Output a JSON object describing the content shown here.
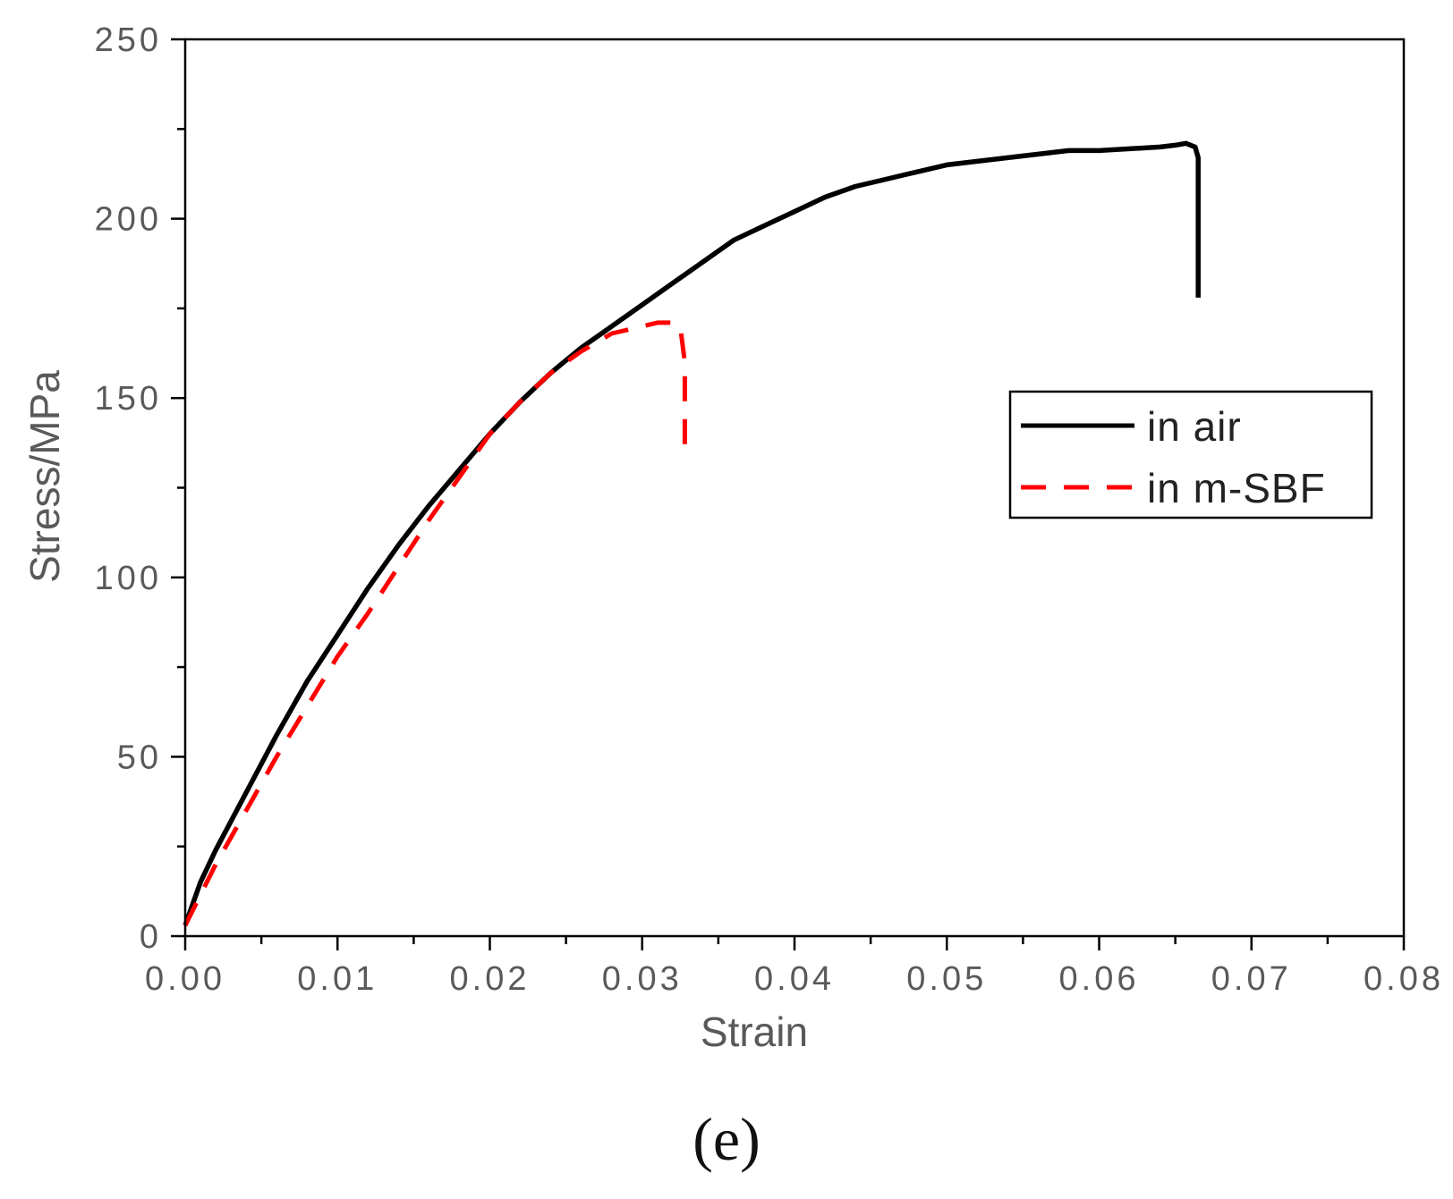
{
  "chart_data": {
    "type": "line",
    "title": "",
    "xlabel": "Strain",
    "ylabel": "Stress/MPa",
    "xlim": [
      0,
      0.08
    ],
    "ylim": [
      0,
      250
    ],
    "x_ticks": [
      0,
      0.01,
      0.02,
      0.03,
      0.04,
      0.05,
      0.06,
      0.07,
      0.08
    ],
    "x_tick_labels": [
      "0.00",
      "0.01",
      "0.02",
      "0.03",
      "0.04",
      "0.05",
      "0.06",
      "0.07",
      "0.08"
    ],
    "y_ticks": [
      0,
      50,
      100,
      150,
      200,
      250
    ],
    "y_tick_labels": [
      "0",
      "50",
      "100",
      "150",
      "200",
      "250"
    ],
    "grid": false,
    "legend_position": "right",
    "panel_label": "(e)",
    "series": [
      {
        "name": "in air",
        "color": "#000000",
        "style": "solid",
        "x": [
          0,
          0.001,
          0.002,
          0.004,
          0.006,
          0.008,
          0.01,
          0.012,
          0.014,
          0.016,
          0.018,
          0.02,
          0.022,
          0.024,
          0.026,
          0.028,
          0.03,
          0.032,
          0.034,
          0.036,
          0.038,
          0.04,
          0.042,
          0.044,
          0.046,
          0.048,
          0.05,
          0.052,
          0.054,
          0.056,
          0.058,
          0.06,
          0.062,
          0.064,
          0.065,
          0.0657,
          0.0663,
          0.0665,
          0.0665
        ],
        "y": [
          3,
          15,
          24,
          40,
          56,
          71,
          84,
          97,
          109,
          120,
          130,
          140,
          149,
          157,
          164,
          170,
          176,
          182,
          188,
          194,
          198,
          202,
          206,
          209,
          211,
          213,
          215,
          216,
          217,
          218,
          219,
          219,
          219.5,
          220,
          220.5,
          221,
          220,
          217,
          178
        ]
      },
      {
        "name": "in m-SBF",
        "color": "#ff0000",
        "style": "dashed",
        "x": [
          0,
          0.002,
          0.004,
          0.006,
          0.008,
          0.01,
          0.012,
          0.014,
          0.016,
          0.018,
          0.02,
          0.022,
          0.024,
          0.026,
          0.028,
          0.03,
          0.031,
          0.032,
          0.0325,
          0.0328,
          0.0328
        ],
        "y": [
          3,
          20,
          35,
          50,
          64,
          78,
          90,
          103,
          116,
          128,
          140,
          149,
          157,
          163,
          168,
          170,
          171,
          171,
          170,
          160,
          137
        ]
      }
    ]
  }
}
